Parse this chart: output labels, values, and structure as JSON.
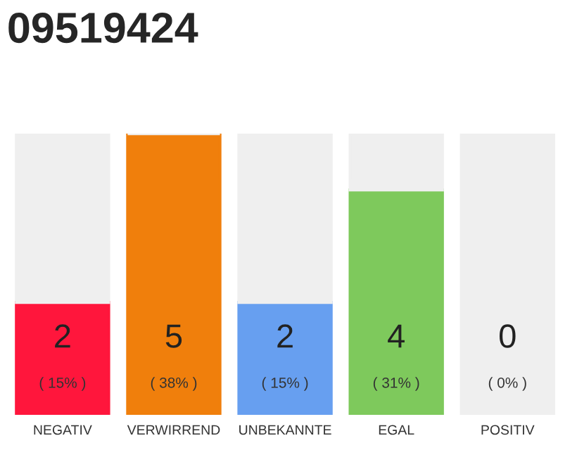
{
  "chart_data": {
    "type": "bar",
    "title": "09519424",
    "stacked": true,
    "categories": [
      "NEGATIV",
      "VERWIRREND",
      "UNBEKANNTE",
      "EGAL",
      "POSITIV"
    ],
    "series": [
      {
        "colors": [
          "#ff163c",
          "#f07f0c",
          "#679ff0",
          "#7ec95c",
          "#2ea84e"
        ],
        "values": [
          2,
          5,
          2,
          4,
          0
        ],
        "value_labels": [
          "2\n( 15% )",
          "5\n( 38% )",
          "2\n( 15% )",
          "4\n( 31% )",
          "0\n( 0% )"
        ]
      },
      {
        "color": "#efefef",
        "values": [
          3,
          0,
          3,
          1,
          5
        ]
      }
    ],
    "legend": false
  }
}
